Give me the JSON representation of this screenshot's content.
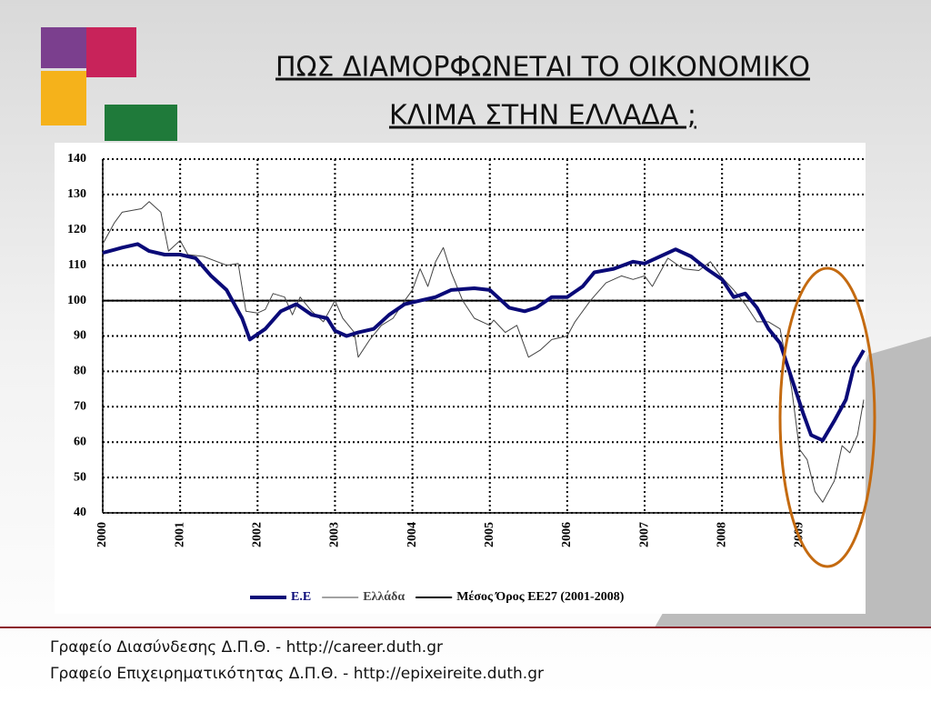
{
  "slide": {
    "title": [
      "ΠΩΣ ΔΙΑΜΟΡΦΩΝΕΤΑΙ ΤΟ ΟΙΚΟΝΟΜΙΚΟ",
      "ΚΛΙΜΑ ΣΤΗΝ ΕΛΛΑΔΑ ;"
    ],
    "footer": [
      "Γραφείο Διασύνδεσης Δ.Π.Θ. - http://career.duth.gr",
      "Γραφείο Επιχειρηματικότητας Δ.Π.Θ. - http://epixeireite.duth.gr"
    ]
  },
  "chart_data": {
    "type": "line",
    "xlim": [
      2000,
      2009.83
    ],
    "xticks": [
      2000,
      2001,
      2002,
      2003,
      2004,
      2005,
      2006,
      2007,
      2008,
      2009
    ],
    "ylim": [
      40,
      140
    ],
    "yticks": [
      40,
      50,
      60,
      70,
      80,
      90,
      100,
      110,
      120,
      130,
      140
    ],
    "grid": true,
    "legend": "bottom",
    "series": [
      {
        "name": "Ε.Ε",
        "color": "#0a0a78",
        "line_width": 4,
        "x": [
          2000,
          2000.25,
          2000.45,
          2000.6,
          2000.8,
          2001,
          2001.2,
          2001.4,
          2001.6,
          2001.8,
          2001.9,
          2002.1,
          2002.3,
          2002.5,
          2002.7,
          2002.9,
          2003,
          2003.15,
          2003.3,
          2003.5,
          2003.7,
          2003.9,
          2004.1,
          2004.3,
          2004.5,
          2004.8,
          2005,
          2005.1,
          2005.25,
          2005.45,
          2005.6,
          2005.8,
          2006,
          2006.2,
          2006.35,
          2006.6,
          2006.85,
          2007,
          2007.15,
          2007.4,
          2007.6,
          2007.8,
          2008,
          2008.15,
          2008.3,
          2008.45,
          2008.6,
          2008.75,
          2008.9,
          2009.05,
          2009.15,
          2009.3,
          2009.45,
          2009.6,
          2009.7,
          2009.83
        ],
        "values": [
          113.5,
          115,
          116,
          114,
          113,
          113,
          112,
          107,
          103,
          95,
          89,
          92,
          97,
          99,
          96,
          95,
          91.5,
          90,
          91,
          92,
          96,
          99,
          100,
          101,
          103,
          103.5,
          103,
          101,
          98,
          97,
          98,
          101,
          101,
          104,
          108,
          109,
          111,
          110.5,
          112,
          114.5,
          112.5,
          109,
          106,
          101,
          102,
          98,
          92,
          88,
          78,
          68,
          62,
          60.5,
          66,
          72,
          81,
          86
        ]
      },
      {
        "name": "Ελλάδα",
        "color": "#444444",
        "line_width": 1,
        "x": [
          2000,
          2000.15,
          2000.25,
          2000.5,
          2000.6,
          2000.75,
          2000.85,
          2001,
          2001.1,
          2001.3,
          2001.6,
          2001.75,
          2001.85,
          2002,
          2002.1,
          2002.2,
          2002.35,
          2002.45,
          2002.55,
          2002.7,
          2002.85,
          2003,
          2003.1,
          2003.25,
          2003.3,
          2003.45,
          2003.6,
          2003.75,
          2003.9,
          2004,
          2004.1,
          2004.2,
          2004.3,
          2004.4,
          2004.5,
          2004.65,
          2004.8,
          2005,
          2005.05,
          2005.2,
          2005.35,
          2005.5,
          2005.65,
          2005.8,
          2006,
          2006.1,
          2006.3,
          2006.5,
          2006.7,
          2006.85,
          2007,
          2007.1,
          2007.3,
          2007.5,
          2007.7,
          2007.85,
          2008,
          2008.15,
          2008.3,
          2008.45,
          2008.6,
          2008.75,
          2008.9,
          2009,
          2009.1,
          2009.2,
          2009.3,
          2009.45,
          2009.55,
          2009.65,
          2009.75,
          2009.83
        ],
        "values": [
          116,
          122,
          125,
          126,
          128,
          125,
          114,
          117,
          113,
          112.5,
          110,
          110.5,
          97,
          96.5,
          97.5,
          102,
          101,
          96,
          101,
          97,
          94,
          100,
          95,
          91,
          84,
          89,
          93,
          95,
          100,
          103,
          109,
          104,
          111,
          115,
          108,
          100,
          95,
          93,
          94.5,
          91,
          93,
          84,
          86,
          89,
          90,
          94,
          100,
          105,
          107,
          106,
          107,
          104,
          112,
          109,
          108.5,
          111,
          106.5,
          103,
          99,
          94,
          94,
          92,
          75,
          58,
          55,
          46,
          43,
          49,
          59,
          57,
          62,
          72
        ]
      },
      {
        "name": "Μέσος Όρος ΕΕ27 (2001-2008)",
        "color": "#000000",
        "line_width": 2,
        "x": [
          2000,
          2009.83
        ],
        "values": [
          100,
          100
        ]
      }
    ]
  }
}
